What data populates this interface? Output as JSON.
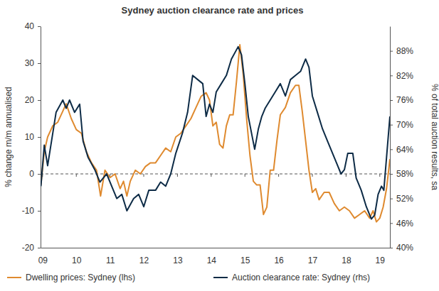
{
  "chart_data": {
    "type": "line",
    "title": "Sydney auction clearance rate and prices",
    "y_label": "% change m/m annualised",
    "y2_label": "% of total auction results, sa",
    "xlim": [
      2008.94,
      2019.3
    ],
    "xticks": [
      {
        "value": 2009,
        "label": "09"
      },
      {
        "value": 2010,
        "label": "10"
      },
      {
        "value": 2011,
        "label": "11"
      },
      {
        "value": 2012,
        "label": "12"
      },
      {
        "value": 2013,
        "label": "13"
      },
      {
        "value": 2014,
        "label": "14"
      },
      {
        "value": 2015,
        "label": "15"
      },
      {
        "value": 2016,
        "label": "16"
      },
      {
        "value": 2017,
        "label": "17"
      },
      {
        "value": 2018,
        "label": "18"
      },
      {
        "value": 2019,
        "label": "19"
      }
    ],
    "ylim": [
      -20,
      40
    ],
    "yticks": [
      -20,
      -10,
      0,
      10,
      20,
      30,
      40
    ],
    "y2lim": [
      40,
      94
    ],
    "y2ticks": [
      {
        "value": 40,
        "label": "40%"
      },
      {
        "value": 46,
        "label": "46%"
      },
      {
        "value": 52,
        "label": "52%"
      },
      {
        "value": 58,
        "label": "58%"
      },
      {
        "value": 64,
        "label": "64%"
      },
      {
        "value": 70,
        "label": "70%"
      },
      {
        "value": 76,
        "label": "76%"
      },
      {
        "value": 82,
        "label": "82%"
      },
      {
        "value": 88,
        "label": "88%"
      }
    ],
    "grid": false,
    "legend": "bottom",
    "series": [
      {
        "name": "Dwelling prices: Sydney (lhs)",
        "color": "#df8a2f",
        "axis": "y",
        "x": [
          2008.95,
          2009.05,
          2009.15,
          2009.3,
          2009.45,
          2009.6,
          2009.7,
          2009.85,
          2010.0,
          2010.15,
          2010.3,
          2010.45,
          2010.6,
          2010.72,
          2010.85,
          2011.0,
          2011.15,
          2011.3,
          2011.4,
          2011.5,
          2011.6,
          2011.75,
          2011.9,
          2012.05,
          2012.2,
          2012.35,
          2012.5,
          2012.65,
          2012.8,
          2012.95,
          2013.1,
          2013.25,
          2013.4,
          2013.55,
          2013.7,
          2013.85,
          2013.95,
          2014.05,
          2014.15,
          2014.25,
          2014.35,
          2014.45,
          2014.55,
          2014.65,
          2014.75,
          2014.85,
          2014.95,
          2015.05,
          2015.15,
          2015.25,
          2015.35,
          2015.45,
          2015.55,
          2015.65,
          2015.75,
          2015.85,
          2015.95,
          2016.05,
          2016.2,
          2016.35,
          2016.5,
          2016.6,
          2016.7,
          2016.8,
          2016.9,
          2017.0,
          2017.1,
          2017.2,
          2017.35,
          2017.5,
          2017.65,
          2017.8,
          2017.95,
          2018.1,
          2018.25,
          2018.4,
          2018.55,
          2018.7,
          2018.8,
          2018.9,
          2019.0,
          2019.1,
          2019.2,
          2019.3
        ],
        "values": [
          -3,
          6,
          10,
          13,
          14,
          17,
          19,
          15,
          12,
          11,
          6,
          3,
          1,
          -6,
          1,
          -1,
          0,
          -4,
          -2,
          -6,
          -2,
          1,
          0,
          2,
          3,
          3,
          5,
          7,
          6,
          10,
          11,
          13,
          15,
          18,
          21,
          22,
          20,
          13,
          14,
          8,
          7,
          13,
          16,
          16,
          25,
          35,
          27,
          15,
          5,
          -2,
          -3,
          -3,
          -11,
          -9,
          1,
          1,
          9,
          16,
          18,
          22,
          24,
          24,
          17,
          9,
          1,
          -5,
          -4,
          -7,
          -5,
          -5,
          -8,
          -10,
          -9,
          -10,
          -12,
          -11,
          -10,
          -12,
          -10,
          -13,
          -12,
          -9,
          -4,
          4
        ]
      },
      {
        "name": "Auction clearance rate: Sydney (rhs)",
        "color": "#0d2b46",
        "axis": "y2",
        "x": [
          2008.95,
          2009.05,
          2009.15,
          2009.4,
          2009.6,
          2009.7,
          2009.8,
          2009.95,
          2010.1,
          2010.2,
          2010.35,
          2010.55,
          2010.7,
          2010.9,
          2011.05,
          2011.2,
          2011.35,
          2011.5,
          2011.7,
          2011.85,
          2012.0,
          2012.15,
          2012.35,
          2012.5,
          2012.65,
          2012.8,
          2012.95,
          2013.15,
          2013.3,
          2013.45,
          2013.6,
          2013.75,
          2013.85,
          2013.95,
          2014.05,
          2014.15,
          2014.3,
          2014.45,
          2014.6,
          2014.8,
          2014.9,
          2015.0,
          2015.1,
          2015.29,
          2015.4,
          2015.5,
          2015.6,
          2015.75,
          2015.9,
          2016.05,
          2016.2,
          2016.35,
          2016.5,
          2016.65,
          2016.8,
          2016.9,
          2017.0,
          2017.15,
          2017.3,
          2017.45,
          2017.6,
          2017.75,
          2017.85,
          2017.95,
          2018.05,
          2018.2,
          2018.3,
          2018.45,
          2018.6,
          2018.75,
          2018.85,
          2018.95,
          2019.05,
          2019.12,
          2019.2,
          2019.3
        ],
        "values": [
          55,
          65,
          60,
          73,
          76,
          74,
          76,
          73,
          75,
          66,
          62,
          59,
          56,
          58,
          55,
          52,
          53,
          49,
          52,
          53,
          50,
          54,
          54,
          56,
          55,
          58,
          63,
          68,
          73,
          82,
          81,
          80,
          72,
          75,
          73,
          78,
          80,
          82,
          86,
          89,
          87,
          80,
          72,
          64,
          69,
          72,
          74,
          76,
          78,
          80,
          77,
          81,
          82,
          83,
          86,
          84,
          77,
          73,
          69,
          66,
          63,
          60,
          58,
          59,
          63,
          63,
          57,
          54,
          50,
          47,
          48,
          53,
          55,
          54,
          62,
          72
        ]
      }
    ]
  }
}
